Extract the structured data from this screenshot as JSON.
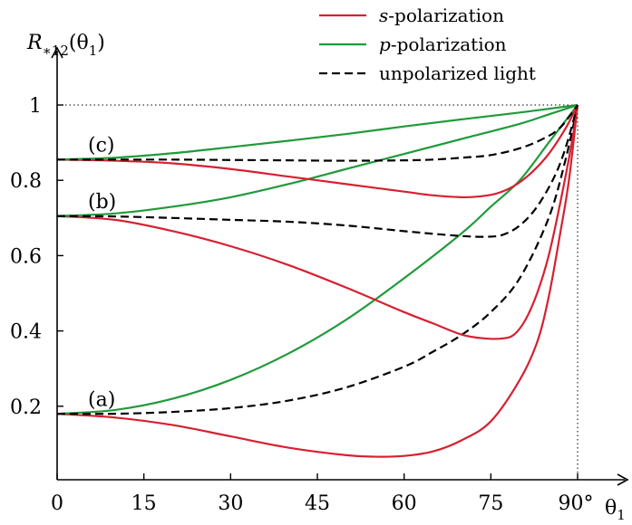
{
  "chart_data": {
    "type": "line",
    "title": "",
    "xlabel": "θ₁",
    "ylabel": "R₊₁₂(θ₁)",
    "ylabel_parts": {
      "main": "R",
      "sub": "∗12",
      "arg": "(θ",
      "argsub": "1",
      "close": ")"
    },
    "xlabel_parts": {
      "main": "θ",
      "sub": "1"
    },
    "xlim": [
      0,
      90
    ],
    "ylim": [
      0,
      1.05
    ],
    "x_ticks": [
      0,
      15,
      30,
      45,
      60,
      75,
      90
    ],
    "x_tick_labels": [
      "0",
      "15",
      "30",
      "45",
      "60",
      "75",
      "90°"
    ],
    "y_ticks": [
      0.2,
      0.4,
      0.6,
      0.8,
      1
    ],
    "y_tick_labels": [
      "0.2",
      "0.4",
      "0.6",
      "0.8",
      "1"
    ],
    "reference_lines": {
      "y": 1,
      "x": 90
    },
    "colors": {
      "s": "#d62031",
      "p": "#1f9a3a",
      "u": "#000000"
    },
    "legend": {
      "position": "top-right",
      "entries": [
        {
          "key": "s",
          "label_italic": "s",
          "label_rest": "-polarization"
        },
        {
          "key": "p",
          "label_italic": "p",
          "label_rest": "-polarization"
        },
        {
          "key": "u",
          "label_italic": "",
          "label_rest": "unpolarized light"
        }
      ]
    },
    "annotations": [
      {
        "text": "(a)",
        "x": 3,
        "y": 0.22
      },
      {
        "text": "(b)",
        "x": 3,
        "y": 0.745
      },
      {
        "text": "(c)",
        "x": 3,
        "y": 0.895
      }
    ],
    "series": [
      {
        "group": "a",
        "pol": "s",
        "x": [
          0,
          10,
          20,
          30,
          40,
          50,
          55,
          60,
          65,
          70,
          75,
          80,
          83,
          85,
          87,
          88.5,
          90
        ],
        "y": [
          0.18,
          0.17,
          0.15,
          0.12,
          0.09,
          0.07,
          0.066,
          0.068,
          0.08,
          0.11,
          0.16,
          0.27,
          0.37,
          0.49,
          0.66,
          0.8,
          1.0
        ]
      },
      {
        "group": "a",
        "pol": "p",
        "x": [
          0,
          10,
          20,
          30,
          40,
          50,
          60,
          70,
          75,
          80,
          85,
          88,
          90
        ],
        "y": [
          0.18,
          0.19,
          0.22,
          0.27,
          0.34,
          0.43,
          0.54,
          0.66,
          0.73,
          0.8,
          0.9,
          0.96,
          1.0
        ]
      },
      {
        "group": "a",
        "pol": "u",
        "x": [
          0,
          10,
          20,
          30,
          40,
          50,
          60,
          65,
          70,
          75,
          80,
          85,
          88,
          90
        ],
        "y": [
          0.18,
          0.18,
          0.185,
          0.195,
          0.215,
          0.25,
          0.305,
          0.345,
          0.39,
          0.45,
          0.54,
          0.7,
          0.86,
          1.0
        ]
      },
      {
        "group": "b",
        "pol": "s",
        "x": [
          0,
          10,
          20,
          30,
          40,
          50,
          60,
          65,
          70,
          74,
          77,
          79,
          81,
          83,
          85,
          87,
          89,
          90
        ],
        "y": [
          0.705,
          0.695,
          0.665,
          0.625,
          0.575,
          0.515,
          0.45,
          0.42,
          0.39,
          0.38,
          0.38,
          0.39,
          0.43,
          0.5,
          0.6,
          0.74,
          0.9,
          1.0
        ]
      },
      {
        "group": "b",
        "pol": "p",
        "x": [
          0,
          10,
          20,
          30,
          40,
          50,
          60,
          70,
          80,
          85,
          90
        ],
        "y": [
          0.705,
          0.712,
          0.73,
          0.755,
          0.79,
          0.83,
          0.87,
          0.91,
          0.95,
          0.975,
          1.0
        ]
      },
      {
        "group": "b",
        "pol": "u",
        "x": [
          0,
          10,
          20,
          30,
          40,
          50,
          60,
          65,
          70,
          74,
          77,
          80,
          83,
          86,
          88,
          90
        ],
        "y": [
          0.705,
          0.704,
          0.7,
          0.695,
          0.69,
          0.68,
          0.665,
          0.658,
          0.652,
          0.65,
          0.655,
          0.68,
          0.73,
          0.81,
          0.89,
          1.0
        ]
      },
      {
        "group": "c",
        "pol": "s",
        "x": [
          0,
          10,
          20,
          30,
          40,
          50,
          60,
          65,
          70,
          73,
          76,
          79,
          82,
          85,
          88,
          90
        ],
        "y": [
          0.855,
          0.852,
          0.845,
          0.83,
          0.81,
          0.79,
          0.77,
          0.76,
          0.755,
          0.757,
          0.765,
          0.785,
          0.82,
          0.87,
          0.94,
          1.0
        ]
      },
      {
        "group": "c",
        "pol": "p",
        "x": [
          0,
          10,
          20,
          30,
          40,
          50,
          60,
          70,
          80,
          90
        ],
        "y": [
          0.855,
          0.86,
          0.872,
          0.888,
          0.905,
          0.923,
          0.943,
          0.962,
          0.98,
          1.0
        ]
      },
      {
        "group": "c",
        "pol": "u",
        "x": [
          0,
          10,
          20,
          30,
          40,
          50,
          60,
          65,
          70,
          75,
          80,
          84,
          87,
          90
        ],
        "y": [
          0.855,
          0.855,
          0.855,
          0.854,
          0.853,
          0.852,
          0.853,
          0.855,
          0.86,
          0.867,
          0.885,
          0.91,
          0.94,
          1.0
        ]
      }
    ]
  }
}
